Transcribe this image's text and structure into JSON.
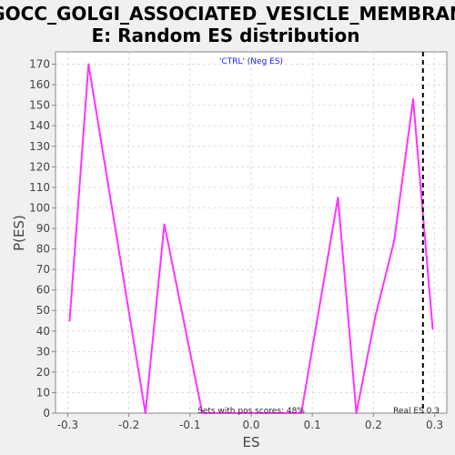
{
  "chart_data": {
    "type": "line",
    "title_line1": "GOCC_GOLGI_ASSOCIATED_VESICLE_MEMBRAN",
    "title_line2": "E: Random ES distribution",
    "xlabel": "ES",
    "ylabel": "P(ES)",
    "xlim": [
      -0.32,
      0.32
    ],
    "ylim": [
      0,
      176
    ],
    "x_ticks": [
      -0.3,
      -0.2,
      -0.1,
      0.0,
      0.1,
      0.2,
      0.3
    ],
    "x_tick_labels": [
      "-0.3",
      "-0.2",
      "-0.1",
      "0.0",
      "0.1",
      "0.2",
      "0.3"
    ],
    "y_ticks": [
      0,
      10,
      20,
      30,
      40,
      50,
      60,
      70,
      80,
      90,
      100,
      110,
      120,
      130,
      140,
      150,
      160,
      170
    ],
    "y_tick_labels": [
      "0",
      "10",
      "20",
      "30",
      "40",
      "50",
      "60",
      "70",
      "80",
      "90",
      "100",
      "110",
      "120",
      "130",
      "140",
      "150",
      "160",
      "170"
    ],
    "grid": true,
    "legend": {
      "text": "'CTRL' (Neg ES)",
      "placement": "top-center"
    },
    "series": [
      {
        "color": "#ff33ff",
        "x": [
          -0.297,
          -0.266,
          -0.173,
          -0.142,
          -0.08,
          0.082,
          0.142,
          0.172,
          0.203,
          0.234,
          0.265,
          0.297
        ],
        "y": [
          45,
          170,
          0,
          92,
          0,
          0,
          105,
          0,
          47,
          84,
          153,
          41
        ]
      }
    ],
    "real_es": {
      "value": 0.281,
      "label": "Real ES 0.3"
    },
    "annotation": "Sets with pos scores: 48%"
  }
}
